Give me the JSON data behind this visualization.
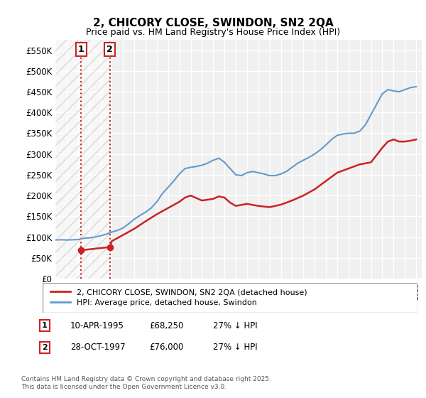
{
  "title": "2, CHICORY CLOSE, SWINDON, SN2 2QA",
  "subtitle": "Price paid vs. HM Land Registry's House Price Index (HPI)",
  "xlabel": "",
  "ylabel": "",
  "ylim": [
    0,
    575000
  ],
  "yticks": [
    0,
    50000,
    100000,
    150000,
    200000,
    250000,
    300000,
    350000,
    400000,
    450000,
    500000,
    550000
  ],
  "ytick_labels": [
    "£0",
    "£50K",
    "£100K",
    "£150K",
    "£200K",
    "£250K",
    "£300K",
    "£350K",
    "£400K",
    "£450K",
    "£500K",
    "£550K"
  ],
  "background_color": "#ffffff",
  "plot_bg_color": "#f0f0f0",
  "grid_color": "#ffffff",
  "hpi_line_color": "#6699cc",
  "price_line_color": "#cc2222",
  "sale1_x": 1995.27,
  "sale1_y": 68250,
  "sale1_label": "1",
  "sale2_x": 1997.83,
  "sale2_y": 76000,
  "sale2_label": "2",
  "vline1_x": 1995.27,
  "vline2_x": 1997.83,
  "legend_entries": [
    "2, CHICORY CLOSE, SWINDON, SN2 2QA (detached house)",
    "HPI: Average price, detached house, Swindon"
  ],
  "table_rows": [
    {
      "num": "1",
      "date": "10-APR-1995",
      "price": "£68,250",
      "hpi": "27% ↓ HPI"
    },
    {
      "num": "2",
      "date": "28-OCT-1997",
      "price": "£76,000",
      "hpi": "27% ↓ HPI"
    }
  ],
  "footnote": "Contains HM Land Registry data © Crown copyright and database right 2025.\nThis data is licensed under the Open Government Licence v3.0.",
  "hatch_region_xlim": [
    1993.0,
    1997.83
  ],
  "xmin": 1993.0,
  "xmax": 2025.5,
  "hpi_data_x": [
    1993.0,
    1993.5,
    1994.0,
    1994.5,
    1995.0,
    1995.5,
    1996.0,
    1996.5,
    1997.0,
    1997.5,
    1998.0,
    1998.5,
    1999.0,
    1999.5,
    2000.0,
    2000.5,
    2001.0,
    2001.5,
    2002.0,
    2002.5,
    2003.0,
    2003.5,
    2004.0,
    2004.5,
    2005.0,
    2005.5,
    2006.0,
    2006.5,
    2007.0,
    2007.5,
    2008.0,
    2008.5,
    2009.0,
    2009.5,
    2010.0,
    2010.5,
    2011.0,
    2011.5,
    2012.0,
    2012.5,
    2013.0,
    2013.5,
    2014.0,
    2014.5,
    2015.0,
    2015.5,
    2016.0,
    2016.5,
    2017.0,
    2017.5,
    2018.0,
    2018.5,
    2019.0,
    2019.5,
    2020.0,
    2020.5,
    2021.0,
    2021.5,
    2022.0,
    2022.5,
    2023.0,
    2023.5,
    2024.0,
    2024.5,
    2025.0
  ],
  "hpi_data_y": [
    93000,
    93500,
    93000,
    93500,
    94000,
    97000,
    98000,
    100000,
    103000,
    107000,
    112000,
    116000,
    122000,
    132000,
    143000,
    152000,
    160000,
    170000,
    185000,
    205000,
    220000,
    235000,
    252000,
    265000,
    268000,
    270000,
    273000,
    278000,
    285000,
    290000,
    280000,
    265000,
    250000,
    248000,
    255000,
    258000,
    255000,
    252000,
    248000,
    248000,
    252000,
    258000,
    268000,
    278000,
    285000,
    292000,
    300000,
    310000,
    322000,
    335000,
    345000,
    348000,
    350000,
    350000,
    355000,
    370000,
    395000,
    420000,
    445000,
    455000,
    452000,
    450000,
    455000,
    460000,
    462000
  ],
  "price_data_x": [
    1995.27,
    1997.83,
    1998.0,
    1999.0,
    2000.0,
    2001.0,
    2002.0,
    2003.0,
    2004.0,
    2004.5,
    2005.0,
    2006.0,
    2007.0,
    2007.5,
    2008.0,
    2008.5,
    2009.0,
    2010.0,
    2011.0,
    2012.0,
    2013.0,
    2014.0,
    2015.0,
    2016.0,
    2017.0,
    2018.0,
    2019.0,
    2019.5,
    2020.0,
    2021.0,
    2022.0,
    2022.5,
    2023.0,
    2023.5,
    2024.0,
    2024.5,
    2025.0
  ],
  "price_data_y": [
    68250,
    76000,
    90000,
    105000,
    120000,
    138000,
    155000,
    170000,
    185000,
    195000,
    200000,
    188000,
    192000,
    198000,
    195000,
    183000,
    175000,
    180000,
    175000,
    172000,
    178000,
    188000,
    200000,
    215000,
    235000,
    255000,
    265000,
    270000,
    275000,
    280000,
    315000,
    330000,
    335000,
    330000,
    330000,
    332000,
    335000
  ]
}
